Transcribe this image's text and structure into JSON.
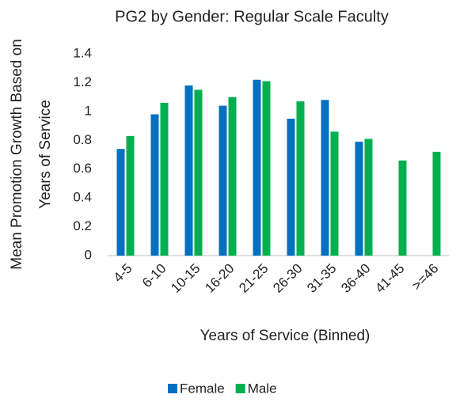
{
  "chart_data": {
    "type": "bar",
    "title": "PG2 by Gender: Regular Scale Faculty",
    "xlabel": "Years of Service (Binned)",
    "ylabel": [
      "Mean Promotion Growth Based on",
      "Years of Service"
    ],
    "categories": [
      "4-5",
      "6-10",
      "10-15",
      "16-20",
      "21-25",
      "26-30",
      "31-35",
      "36-40",
      "41-45",
      ">=46"
    ],
    "series": [
      {
        "name": "Female",
        "color": "#0070c0",
        "values": [
          0.74,
          0.98,
          1.18,
          1.04,
          1.22,
          0.95,
          1.08,
          0.79,
          null,
          null
        ]
      },
      {
        "name": "Male",
        "color": "#00b050",
        "values": [
          0.83,
          1.06,
          1.15,
          1.1,
          1.21,
          1.07,
          0.86,
          0.81,
          0.66,
          0.72
        ]
      }
    ],
    "ylim": [
      0,
      1.4
    ],
    "yticks": [
      0,
      0.2,
      0.4,
      0.6,
      0.8,
      1,
      1.2,
      1.4
    ],
    "grid": false,
    "legend": "bottom"
  }
}
